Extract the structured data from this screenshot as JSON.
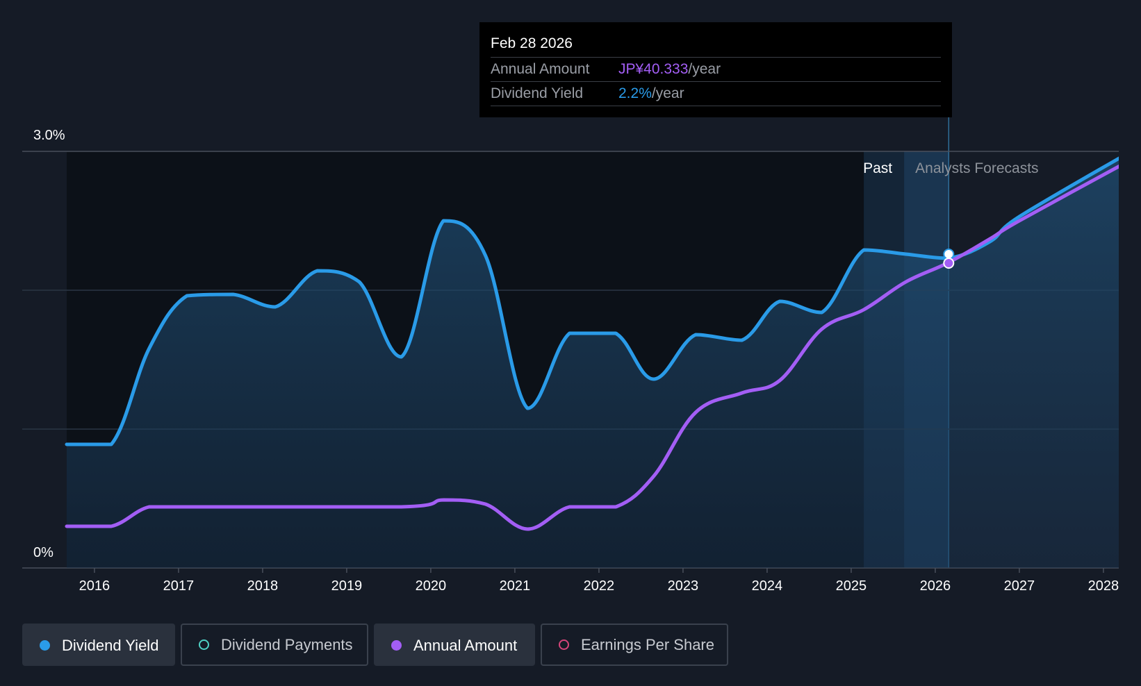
{
  "tooltip": {
    "date": "Feb 28 2026",
    "rows": [
      {
        "label": "Annual Amount",
        "value": "JP¥40.333",
        "unit": "/year",
        "color": "#a35ef5"
      },
      {
        "label": "Dividend Yield",
        "value": "2.2%",
        "unit": "/year",
        "color": "#2a9be8"
      }
    ]
  },
  "legend": [
    {
      "label": "Dividend Yield",
      "style": "filled",
      "dot_color": "#2a9be8",
      "dot_filled": true
    },
    {
      "label": "Dividend Payments",
      "style": "outline",
      "dot_color": "#4fd1c5",
      "dot_filled": false
    },
    {
      "label": "Annual Amount",
      "style": "filled",
      "dot_color": "#a35ef5",
      "dot_filled": true
    },
    {
      "label": "Earnings Per Share",
      "style": "outline",
      "dot_color": "#d6457a",
      "dot_filled": false
    }
  ],
  "chart_data": {
    "type": "line",
    "y_axis": {
      "min": 0,
      "max": 3.0,
      "tick_labels": [
        {
          "value": 3.0,
          "label": "3.0%"
        },
        {
          "value": 0,
          "label": "0%"
        }
      ],
      "gridlines": [
        1.0,
        2.0,
        3.0
      ]
    },
    "x_axis": {
      "min": 2015.0,
      "max": 2028.2,
      "ticks": [
        2016,
        2017,
        2018,
        2019,
        2020,
        2021,
        2022,
        2023,
        2024,
        2025,
        2026,
        2027,
        2028
      ]
    },
    "regions": {
      "past_label": "Past",
      "forecast_label": "Analysts Forecasts",
      "past_start": 2025.15,
      "forecast_start": 2025.63,
      "current": 2026.16
    },
    "series": [
      {
        "name": "Dividend Yield",
        "color": "#2a9be8",
        "axis": "percent",
        "points": [
          [
            2015.67,
            0.89
          ],
          [
            2016.2,
            0.89
          ],
          [
            2016.65,
            1.58
          ],
          [
            2017.1,
            1.96
          ],
          [
            2017.65,
            1.97
          ],
          [
            2018.15,
            1.88
          ],
          [
            2018.65,
            2.14
          ],
          [
            2019.15,
            2.06
          ],
          [
            2019.65,
            1.52
          ],
          [
            2020.15,
            2.5
          ],
          [
            2020.65,
            2.25
          ],
          [
            2021.15,
            1.15
          ],
          [
            2021.65,
            1.69
          ],
          [
            2022.2,
            1.69
          ],
          [
            2022.65,
            1.36
          ],
          [
            2023.15,
            1.68
          ],
          [
            2023.7,
            1.64
          ],
          [
            2024.15,
            1.92
          ],
          [
            2024.65,
            1.84
          ],
          [
            2025.15,
            2.29
          ],
          [
            2025.65,
            2.26
          ],
          [
            2026.16,
            2.23
          ],
          [
            2026.65,
            2.35
          ],
          [
            2027.0,
            2.53
          ],
          [
            2028.3,
            2.99
          ]
        ]
      },
      {
        "name": "Annual Amount",
        "color": "#a35ef5",
        "axis": "amount",
        "points": [
          [
            2015.67,
            0.3
          ],
          [
            2016.2,
            0.3
          ],
          [
            2016.65,
            0.44
          ],
          [
            2017.15,
            0.44
          ],
          [
            2019.65,
            0.44
          ],
          [
            2020.15,
            0.49
          ],
          [
            2020.65,
            0.46
          ],
          [
            2021.15,
            0.28
          ],
          [
            2021.65,
            0.44
          ],
          [
            2022.2,
            0.44
          ],
          [
            2022.65,
            0.66
          ],
          [
            2023.15,
            1.12
          ],
          [
            2023.7,
            1.26
          ],
          [
            2024.15,
            1.35
          ],
          [
            2024.65,
            1.72
          ],
          [
            2025.15,
            1.86
          ],
          [
            2025.65,
            2.06
          ],
          [
            2026.16,
            2.2
          ],
          [
            2026.65,
            2.37
          ],
          [
            2027.0,
            2.5
          ],
          [
            2028.3,
            2.93
          ]
        ]
      }
    ]
  }
}
